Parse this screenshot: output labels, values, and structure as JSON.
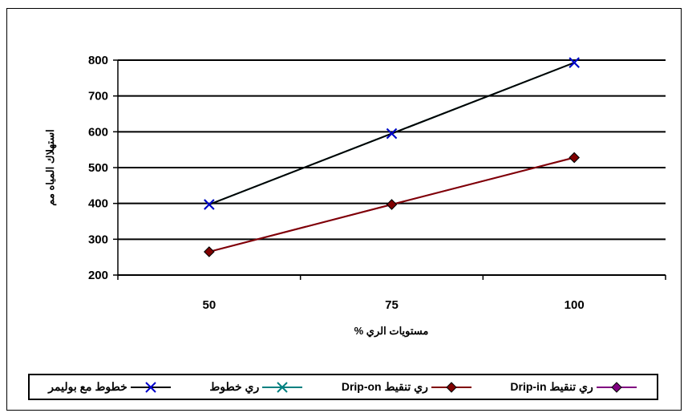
{
  "chart_data": {
    "type": "line",
    "title": "",
    "xlabel": "مستويات الري %",
    "ylabel": "استهلاك المياه مم",
    "categories": [
      "50",
      "75",
      "100"
    ],
    "ylim": [
      200,
      800
    ],
    "yticks": [
      200,
      300,
      400,
      500,
      600,
      700,
      800
    ],
    "grid": true,
    "legend_position": "bottom",
    "series": [
      {
        "name": "ري تنقيط Drip-in",
        "values": [
          265,
          397,
          528
        ],
        "color": "#800080",
        "marker": "diamond",
        "hidden_behind": true
      },
      {
        "name": "ري تنقيط Drip-on",
        "values": [
          265,
          397,
          528
        ],
        "color": "#800000",
        "marker": "diamond"
      },
      {
        "name": "ري خطوط",
        "values": [
          397,
          595,
          793
        ],
        "color": "#008080",
        "marker": "x",
        "hidden_behind": true
      },
      {
        "name": "خطوط مع بوليمر",
        "values": [
          397,
          595,
          793
        ],
        "color": "#000000",
        "marker": "x",
        "marker_color": "#0000cc"
      }
    ]
  }
}
